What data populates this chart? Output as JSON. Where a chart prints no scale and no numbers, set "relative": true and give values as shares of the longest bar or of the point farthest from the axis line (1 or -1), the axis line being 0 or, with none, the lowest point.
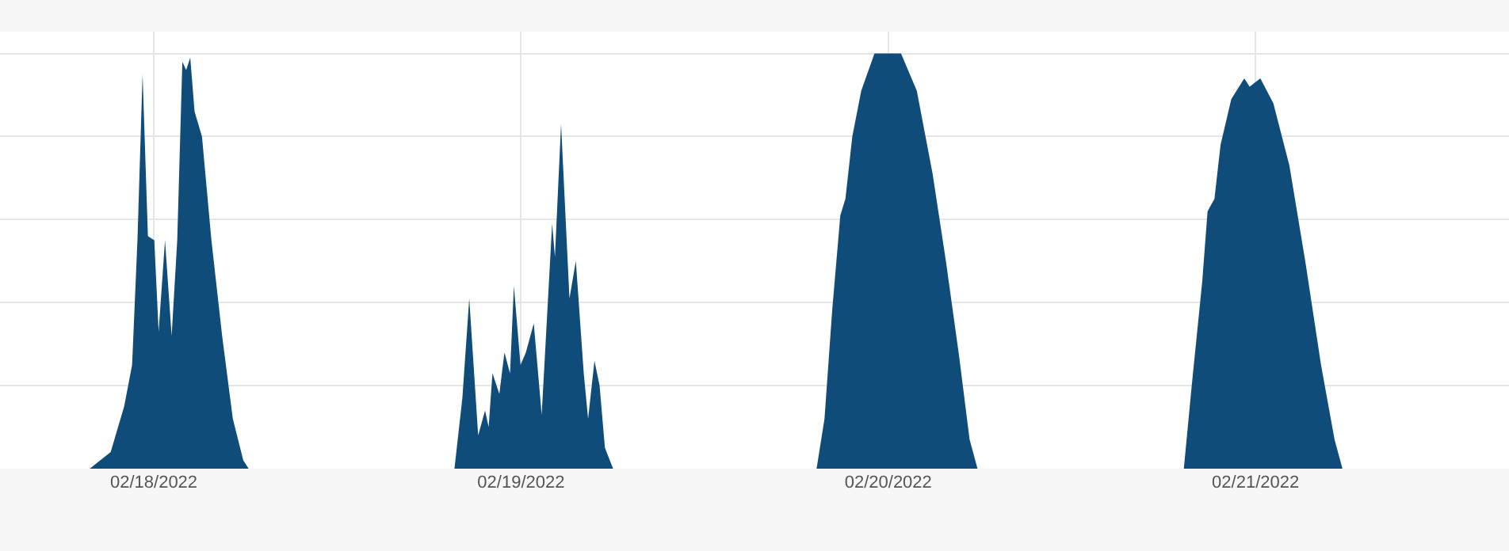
{
  "chart_data": {
    "type": "area",
    "relative": true,
    "grid": true,
    "x": [
      "2022-02-17T19:49",
      "2022-02-17T21:11",
      "2022-02-17T22:04",
      "2022-02-17T22:35",
      "2022-02-17T22:56",
      "2022-02-17T23:16",
      "2022-02-17T23:37",
      "2022-02-18T00:02",
      "2022-02-18T00:19",
      "2022-02-18T00:44",
      "2022-02-18T01:10",
      "2022-02-18T01:32",
      "2022-02-18T01:52",
      "2022-02-18T02:07",
      "2022-02-18T02:23",
      "2022-02-18T02:40",
      "2022-02-18T03:09",
      "2022-02-18T03:46",
      "2022-02-18T04:28",
      "2022-02-18T05:10",
      "2022-02-18T05:51",
      "2022-02-18T06:12",
      "2022-02-18T19:39",
      "2022-02-18T20:10",
      "2022-02-18T20:37",
      "2022-02-18T21:12",
      "2022-02-18T21:39",
      "2022-02-18T21:53",
      "2022-02-18T22:08",
      "2022-02-18T22:35",
      "2022-02-18T22:55",
      "2022-02-18T23:17",
      "2022-02-18T23:32",
      "2022-02-18T23:58",
      "2022-02-19T00:19",
      "2022-02-19T00:50",
      "2022-02-19T01:21",
      "2022-02-19T02:02",
      "2022-02-19T02:13",
      "2022-02-19T02:37",
      "2022-02-19T03:10",
      "2022-02-19T03:35",
      "2022-02-19T04:06",
      "2022-02-19T04:23",
      "2022-02-19T04:48",
      "2022-02-19T05:08",
      "2022-02-19T05:29",
      "2022-02-19T06:01",
      "2022-02-19T19:19",
      "2022-02-19T19:50",
      "2022-02-19T20:20",
      "2022-02-19T20:52",
      "2022-02-19T21:12",
      "2022-02-19T21:39",
      "2022-02-19T22:14",
      "2022-02-19T23:06",
      "2022-02-20T00:50",
      "2022-02-20T01:52",
      "2022-02-20T02:54",
      "2022-02-20T03:46",
      "2022-02-20T04:38",
      "2022-02-20T05:19",
      "2022-02-20T05:50",
      "2022-02-20T19:19",
      "2022-02-20T19:50",
      "2022-02-20T20:31",
      "2022-02-20T20:52",
      "2022-02-20T21:19",
      "2022-02-20T21:43",
      "2022-02-20T22:25",
      "2022-02-20T23:16",
      "2022-02-20T23:37",
      "2022-02-21T00:19",
      "2022-02-21T01:10",
      "2022-02-21T02:13",
      "2022-02-21T03:15",
      "2022-02-21T04:17",
      "2022-02-21T05:10",
      "2022-02-21T05:41"
    ],
    "series": [
      {
        "color": "#0f4c7a",
        "values": [
          0,
          0.04,
          0.15,
          0.25,
          0.55,
          0.95,
          0.56,
          0.55,
          0.33,
          0.55,
          0.32,
          0.55,
          0.98,
          0.96,
          0.99,
          0.86,
          0.8,
          0.55,
          0.32,
          0.12,
          0.02,
          0,
          0,
          0.17,
          0.41,
          0.08,
          0.14,
          0.1,
          0.23,
          0.18,
          0.28,
          0.23,
          0.44,
          0.25,
          0.28,
          0.35,
          0.13,
          0.59,
          0.51,
          0.83,
          0.41,
          0.5,
          0.23,
          0.12,
          0.26,
          0.2,
          0.05,
          0,
          0,
          0.12,
          0.38,
          0.61,
          0.65,
          0.8,
          0.91,
          1.0,
          1.0,
          0.91,
          0.71,
          0.5,
          0.27,
          0.07,
          0,
          0,
          0.2,
          0.45,
          0.62,
          0.65,
          0.78,
          0.89,
          0.94,
          0.92,
          0.94,
          0.88,
          0.73,
          0.5,
          0.25,
          0.07,
          0
        ]
      }
    ],
    "xlim": [
      "2022-02-17T13:57",
      "2022-02-21T16:34"
    ],
    "xticks": [
      {
        "value": "2022-02-18",
        "label": "02/18/2022"
      },
      {
        "value": "2022-02-19",
        "label": "02/19/2022"
      },
      {
        "value": "2022-02-20",
        "label": "02/20/2022"
      },
      {
        "value": "2022-02-21",
        "label": "02/21/2022"
      }
    ]
  }
}
